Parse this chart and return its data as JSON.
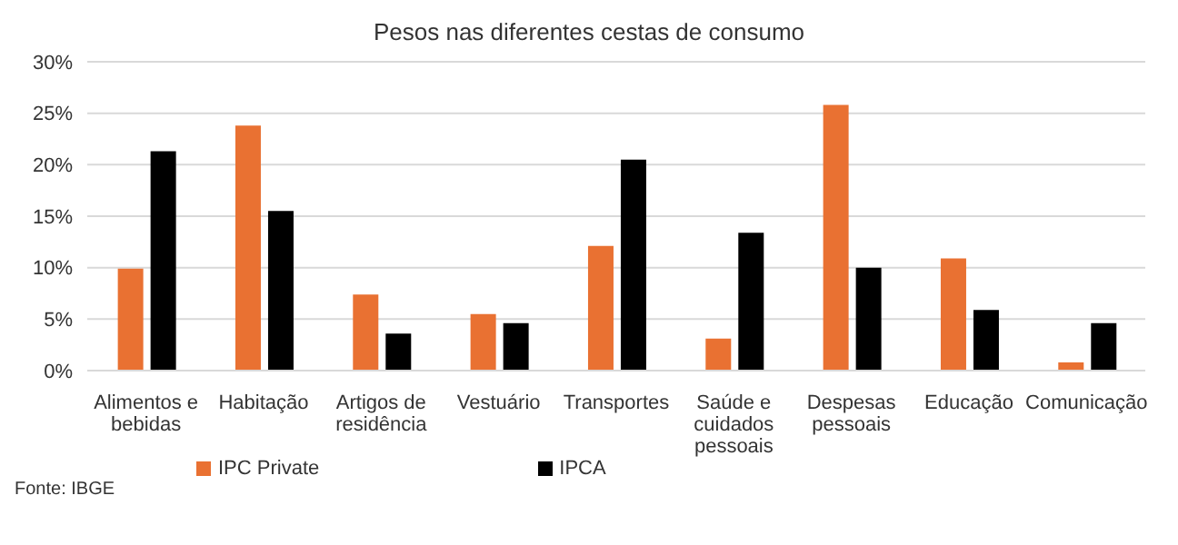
{
  "chart_data": {
    "type": "bar",
    "title": "Pesos nas diferentes cestas de consumo",
    "categories": [
      "Alimentos e bebidas",
      "Habitação",
      "Artigos de residência",
      "Vestuário",
      "Transportes",
      "Saúde e cuidados pessoais",
      "Despesas pessoais",
      "Educação",
      "Comunicação"
    ],
    "series": [
      {
        "name": "IPC Private",
        "color": "#e97132",
        "values": [
          9.9,
          23.8,
          7.4,
          5.5,
          12.1,
          3.1,
          25.8,
          10.9,
          0.8
        ]
      },
      {
        "name": "IPCA",
        "color": "#000000",
        "values": [
          21.3,
          15.5,
          3.6,
          4.6,
          20.5,
          13.4,
          10.0,
          5.9,
          4.6
        ]
      }
    ],
    "ylim": [
      0,
      30
    ],
    "yticks": [
      {
        "value": 0,
        "label": "0%"
      },
      {
        "value": 5,
        "label": "5%"
      },
      {
        "value": 10,
        "label": "10%"
      },
      {
        "value": 15,
        "label": "15%"
      },
      {
        "value": 20,
        "label": "20%"
      },
      {
        "value": 25,
        "label": "25%"
      },
      {
        "value": 30,
        "label": "30%"
      }
    ],
    "grid": "y",
    "legend": "bottom left",
    "annotations": [
      "Fonte: IBGE"
    ]
  }
}
